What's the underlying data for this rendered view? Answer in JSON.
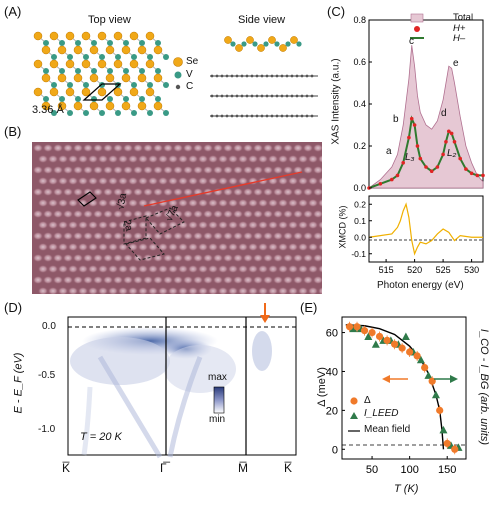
{
  "panels": {
    "A": "(A)",
    "B": "(B)",
    "C": "(C)",
    "D": "(D)",
    "E": "(E)"
  },
  "panelA": {
    "top_view": "Top view",
    "side_view": "Side view",
    "legend": [
      "Se",
      "V",
      "C"
    ],
    "lattice_constant": "3.36 Å",
    "colors": {
      "Se": "#f0a818",
      "V": "#3a9a86",
      "C": "#555555"
    }
  },
  "panelB": {
    "labels": [
      "√3a",
      "√7a",
      "2a"
    ],
    "line_color": "#e53a2a"
  },
  "panelC": {
    "ylabel": "XAS Intensity (a.u.)",
    "legend": [
      "Total",
      "H+",
      "H–"
    ],
    "peak_labels": [
      "a",
      "b",
      "c",
      "d",
      "e",
      "L₃",
      "L₂"
    ],
    "xmcd_ylabel": "XMCD (%)",
    "xlabel": "Photon energy (eV)",
    "xas_yticks": [
      "0.0",
      "0.2",
      "0.4",
      "0.6",
      "0.8"
    ],
    "xmcd_yticks": [
      "0.2",
      "0.1",
      "0.0",
      "-0.1"
    ],
    "xticks": [
      "515",
      "520",
      "525",
      "530"
    ],
    "colors": {
      "total_fill": "#e6c8d4",
      "h_plus": "#e02424",
      "h_minus": "#2f7a2f",
      "xmcd": "#f0b000"
    }
  },
  "panelD": {
    "ylabel": "E - E_F (eV)",
    "yticks": [
      "0.0",
      "-0.5",
      "-1.0"
    ],
    "xticks": [
      "K̅",
      "Γ̅",
      "M̅",
      "K̅"
    ],
    "temperature": "T = 20 K",
    "colorbar": [
      "max",
      "min"
    ]
  },
  "panelE": {
    "ylabel_left": "Δ (meV)",
    "ylabel_right": "I_CO - I_BG (arb. units)",
    "xlabel": "T (K)",
    "yticks": [
      "60",
      "40",
      "20",
      "0"
    ],
    "xticks": [
      "50",
      "100",
      "150"
    ],
    "legend": [
      "Δ",
      "I_LEED",
      "Mean field"
    ],
    "colors": {
      "delta": "#f07a2a",
      "leed": "#2f7a4a"
    }
  },
  "chart_data": [
    {
      "type": "line",
      "panel": "C-top",
      "xlabel": "Photon energy (eV)",
      "ylabel": "XAS Intensity (a.u.)",
      "xlim": [
        512,
        532
      ],
      "ylim": [
        0,
        0.8
      ],
      "x": [
        512,
        514,
        516,
        517,
        518,
        519,
        519.5,
        520,
        520.5,
        521,
        522,
        523,
        524,
        525,
        525.5,
        526,
        526.5,
        527,
        528,
        529,
        530,
        531,
        532
      ],
      "series": [
        {
          "name": "Total",
          "values": [
            0.0,
            0.04,
            0.1,
            0.16,
            0.3,
            0.52,
            0.68,
            0.58,
            0.44,
            0.36,
            0.3,
            0.28,
            0.32,
            0.42,
            0.5,
            0.58,
            0.57,
            0.5,
            0.34,
            0.2,
            0.12,
            0.06,
            0.03
          ]
        },
        {
          "name": "H+",
          "values": [
            0.0,
            0.02,
            0.04,
            0.06,
            0.12,
            0.24,
            0.33,
            0.3,
            0.2,
            0.14,
            0.1,
            0.08,
            0.1,
            0.16,
            0.22,
            0.27,
            0.26,
            0.22,
            0.14,
            0.09,
            0.07,
            0.06,
            0.06
          ]
        },
        {
          "name": "H–",
          "values": [
            0.0,
            0.02,
            0.04,
            0.06,
            0.12,
            0.24,
            0.33,
            0.3,
            0.2,
            0.14,
            0.1,
            0.08,
            0.1,
            0.16,
            0.22,
            0.27,
            0.26,
            0.22,
            0.14,
            0.09,
            0.07,
            0.06,
            0.06
          ]
        }
      ]
    },
    {
      "type": "line",
      "panel": "C-bottom",
      "xlabel": "Photon energy (eV)",
      "ylabel": "XMCD (%)",
      "xlim": [
        512,
        532
      ],
      "ylim": [
        -0.15,
        0.25
      ],
      "x": [
        512,
        514,
        516,
        517,
        517.5,
        518,
        518.5,
        519,
        519.5,
        520,
        520.5,
        521,
        522,
        523,
        524,
        525,
        526,
        527,
        528,
        530,
        532
      ],
      "series": [
        {
          "name": "XMCD",
          "values": [
            0.0,
            0.01,
            0.02,
            0.06,
            0.1,
            0.16,
            0.2,
            0.12,
            -0.02,
            -0.1,
            -0.06,
            -0.03,
            -0.04,
            -0.02,
            0.02,
            0.05,
            0.03,
            -0.02,
            0.01,
            0.0,
            0.0
          ]
        }
      ]
    },
    {
      "type": "scatter",
      "panel": "E",
      "xlabel": "T (K)",
      "ylabel": "Δ (meV)",
      "xlim": [
        10,
        175
      ],
      "ylim": [
        -5,
        68
      ],
      "series": [
        {
          "name": "Δ",
          "x": [
            20,
            30,
            40,
            50,
            60,
            70,
            80,
            90,
            100,
            110,
            120,
            130,
            140,
            150,
            160
          ],
          "values": [
            63,
            63,
            61,
            60,
            58,
            56,
            54,
            52,
            50,
            48,
            42,
            35,
            20,
            3,
            0
          ]
        },
        {
          "name": "I_LEED",
          "x": [
            25,
            35,
            45,
            55,
            65,
            75,
            85,
            95,
            105,
            115,
            125,
            135,
            145,
            155,
            165
          ],
          "values": [
            62,
            62,
            58,
            54,
            56,
            56,
            54,
            58,
            50,
            46,
            38,
            28,
            10,
            2,
            1
          ]
        },
        {
          "name": "Mean field",
          "x": [
            15,
            40,
            60,
            80,
            100,
            115,
            125,
            135,
            140,
            143,
            145
          ],
          "values": [
            64,
            63.5,
            62,
            59,
            53,
            46,
            39,
            28,
            20,
            10,
            0
          ]
        }
      ]
    }
  ]
}
